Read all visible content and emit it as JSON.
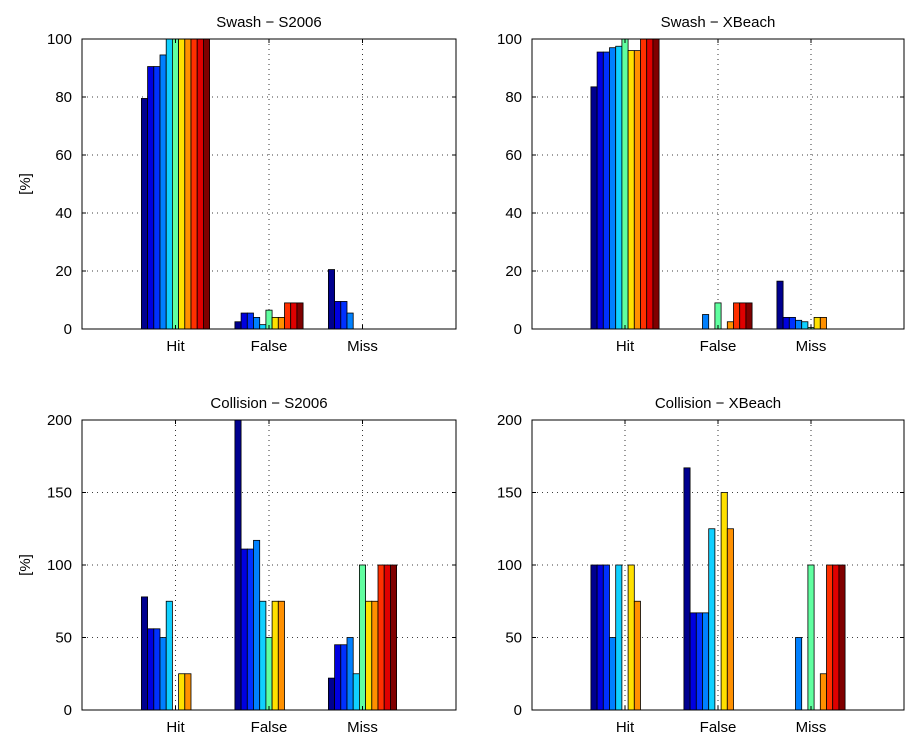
{
  "chart_data": [
    {
      "type": "bar",
      "title": "Swash − S2006",
      "ylabel": "[%]",
      "categories": [
        "Hit",
        "False",
        "Miss"
      ],
      "ylim": [
        0,
        100
      ],
      "yticks": [
        0,
        20,
        40,
        60,
        80,
        100
      ],
      "grid": true,
      "series": [
        {
          "values": [
            79.5,
            2.5,
            20.5
          ]
        },
        {
          "values": [
            90.5,
            5.5,
            9.5
          ]
        },
        {
          "values": [
            90.5,
            5.5,
            9.5
          ]
        },
        {
          "values": [
            94.5,
            4.0,
            5.5
          ]
        },
        {
          "values": [
            100,
            1.5,
            0
          ]
        },
        {
          "values": [
            100,
            6.5,
            0
          ]
        },
        {
          "values": [
            100,
            4.0,
            0
          ]
        },
        {
          "values": [
            100,
            4.0,
            0
          ]
        },
        {
          "values": [
            100,
            9.0,
            0
          ]
        },
        {
          "values": [
            100,
            9.0,
            0
          ]
        },
        {
          "values": [
            100,
            9.0,
            0
          ]
        }
      ]
    },
    {
      "type": "bar",
      "title": "Swash − XBeach",
      "ylabel": "",
      "categories": [
        "Hit",
        "False",
        "Miss"
      ],
      "ylim": [
        0,
        100
      ],
      "yticks": [
        0,
        20,
        40,
        60,
        80,
        100
      ],
      "grid": true,
      "series": [
        {
          "values": [
            83.5,
            0,
            16.5
          ]
        },
        {
          "values": [
            95.5,
            0,
            4.0
          ]
        },
        {
          "values": [
            95.5,
            0,
            4.0
          ]
        },
        {
          "values": [
            97.0,
            5.0,
            3.0
          ]
        },
        {
          "values": [
            97.5,
            0,
            2.5
          ]
        },
        {
          "values": [
            100,
            9.0,
            0.5
          ]
        },
        {
          "values": [
            96.0,
            0,
            4.0
          ]
        },
        {
          "values": [
            96.0,
            2.5,
            4.0
          ]
        },
        {
          "values": [
            100,
            9.0,
            0
          ]
        },
        {
          "values": [
            100,
            9.0,
            0
          ]
        },
        {
          "values": [
            100,
            9.0,
            0
          ]
        }
      ]
    },
    {
      "type": "bar",
      "title": "Collision − S2006",
      "ylabel": "[%]",
      "categories": [
        "Hit",
        "False",
        "Miss"
      ],
      "ylim": [
        0,
        200
      ],
      "yticks": [
        0,
        50,
        100,
        150,
        200
      ],
      "grid": true,
      "series": [
        {
          "values": [
            78,
            200,
            22
          ]
        },
        {
          "values": [
            56,
            111,
            45
          ]
        },
        {
          "values": [
            56,
            111,
            45
          ]
        },
        {
          "values": [
            50,
            117,
            50
          ]
        },
        {
          "values": [
            75,
            75,
            25
          ]
        },
        {
          "values": [
            0,
            50,
            100
          ]
        },
        {
          "values": [
            25,
            75,
            75
          ]
        },
        {
          "values": [
            25,
            75,
            75
          ]
        },
        {
          "values": [
            0,
            0,
            100
          ]
        },
        {
          "values": [
            0,
            0,
            100
          ]
        },
        {
          "values": [
            0,
            0,
            100
          ]
        }
      ]
    },
    {
      "type": "bar",
      "title": "Collision − XBeach",
      "ylabel": "",
      "categories": [
        "Hit",
        "False",
        "Miss"
      ],
      "ylim": [
        0,
        200
      ],
      "yticks": [
        0,
        50,
        100,
        150,
        200
      ],
      "grid": true,
      "series": [
        {
          "values": [
            100,
            167,
            0
          ]
        },
        {
          "values": [
            100,
            67,
            0
          ]
        },
        {
          "values": [
            100,
            67,
            0
          ]
        },
        {
          "values": [
            50,
            67,
            50
          ]
        },
        {
          "values": [
            100,
            125,
            0
          ]
        },
        {
          "values": [
            0,
            0,
            100
          ]
        },
        {
          "values": [
            100,
            150,
            0
          ]
        },
        {
          "values": [
            75,
            125,
            25
          ]
        },
        {
          "values": [
            0,
            0,
            100
          ]
        },
        {
          "values": [
            0,
            0,
            100
          ]
        },
        {
          "values": [
            0,
            0,
            100
          ]
        }
      ]
    }
  ],
  "series_colors": [
    "#00008f",
    "#0000df",
    "#0030ff",
    "#0080ff",
    "#10d0ff",
    "#60ffa0",
    "#b0ff50",
    "#ffe000",
    "#ff9000",
    "#ff3000",
    "#df0000",
    "#800000"
  ],
  "colormap_used": [
    0,
    1,
    2,
    3,
    4,
    5,
    7,
    8,
    9,
    10,
    11
  ]
}
